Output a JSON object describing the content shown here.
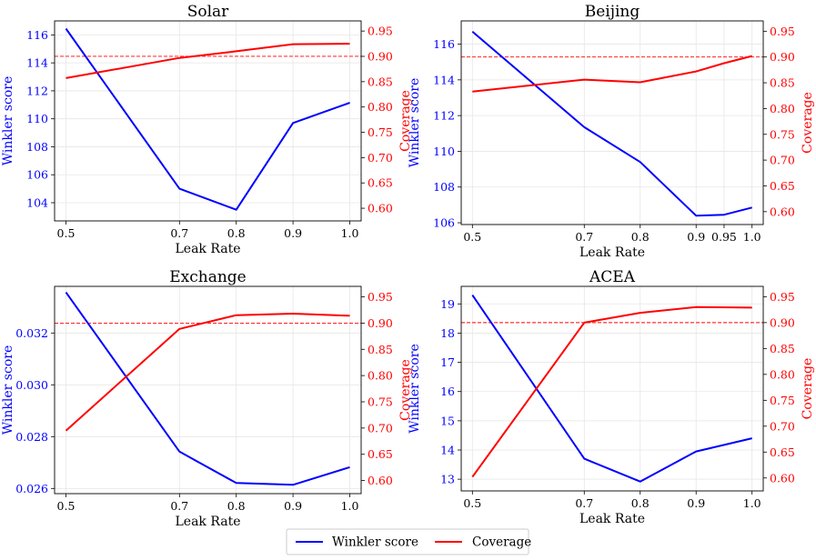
{
  "colors": {
    "winkler": "#0000ff",
    "coverage": "#ff0000",
    "grid": "#e6e6e6",
    "target": "#ff0000"
  },
  "legend": {
    "winkler_label": "Winkler score",
    "coverage_label": "Coverage"
  },
  "chart_data": [
    {
      "type": "line",
      "title": "Solar",
      "xlabel": "Leak Rate",
      "ylabel_left": "Winkler score",
      "ylabel_right": "Coverage",
      "grid": true,
      "target_coverage": 0.9,
      "x": [
        0.5,
        0.7,
        0.8,
        0.9,
        1.0
      ],
      "xticks": [
        "0.5",
        "0.7",
        "0.8",
        "0.9",
        "1.0"
      ],
      "xlim": [
        0.48,
        1.02
      ],
      "ylim_left": [
        102.7,
        117.0
      ],
      "yticks_left": [
        "104",
        "106",
        "108",
        "110",
        "112",
        "114",
        "116"
      ],
      "ylim_right": [
        0.575,
        0.97
      ],
      "yticks_right": [
        "0.60",
        "0.65",
        "0.70",
        "0.75",
        "0.80",
        "0.85",
        "0.90",
        "0.95"
      ],
      "series": [
        {
          "name": "Winkler score",
          "axis": "left",
          "values": [
            116.45,
            105.0,
            103.5,
            109.7,
            111.15
          ]
        },
        {
          "name": "Coverage",
          "axis": "right",
          "values": [
            0.857,
            0.897,
            0.91,
            0.924,
            0.925
          ]
        }
      ]
    },
    {
      "type": "line",
      "title": "Beijing",
      "xlabel": "Leak Rate",
      "ylabel_left": "Winkler score",
      "ylabel_right": "Coverage",
      "grid": true,
      "target_coverage": 0.9,
      "x": [
        0.5,
        0.7,
        0.8,
        0.9,
        0.95,
        1.0
      ],
      "xticks": [
        "0.5",
        "0.7",
        "0.8",
        "0.9",
        "0.95",
        "1.0"
      ],
      "xlim": [
        0.48,
        1.02
      ],
      "ylim_left": [
        105.9,
        117.3
      ],
      "yticks_left": [
        "106",
        "108",
        "110",
        "112",
        "114",
        "116"
      ],
      "ylim_right": [
        0.575,
        0.97
      ],
      "yticks_right": [
        "0.60",
        "0.65",
        "0.70",
        "0.75",
        "0.80",
        "0.85",
        "0.90",
        "0.95"
      ],
      "series": [
        {
          "name": "Winkler score",
          "axis": "left",
          "values": [
            116.7,
            111.35,
            109.4,
            106.4,
            106.45,
            106.85
          ]
        },
        {
          "name": "Coverage",
          "axis": "right",
          "values": [
            0.833,
            0.856,
            0.851,
            0.872,
            0.888,
            0.902
          ]
        }
      ]
    },
    {
      "type": "line",
      "title": "Exchange",
      "xlabel": "Leak Rate",
      "ylabel_left": "Winkler score",
      "ylabel_right": "Coverage",
      "grid": true,
      "target_coverage": 0.9,
      "x": [
        0.5,
        0.7,
        0.8,
        0.9,
        1.0
      ],
      "xticks": [
        "0.5",
        "0.7",
        "0.8",
        "0.9",
        "1.0"
      ],
      "xlim": [
        0.48,
        1.02
      ],
      "ylim_left": [
        0.0258,
        0.0338
      ],
      "yticks_left": [
        "0.026",
        "0.028",
        "0.030",
        "0.032"
      ],
      "ylim_right": [
        0.575,
        0.97
      ],
      "yticks_right": [
        "0.60",
        "0.65",
        "0.70",
        "0.75",
        "0.80",
        "0.85",
        "0.90",
        "0.95"
      ],
      "series": [
        {
          "name": "Winkler score",
          "axis": "left",
          "values": [
            0.03357,
            0.02742,
            0.02621,
            0.02614,
            0.02682
          ]
        },
        {
          "name": "Coverage",
          "axis": "right",
          "values": [
            0.695,
            0.889,
            0.915,
            0.918,
            0.914
          ]
        }
      ]
    },
    {
      "type": "line",
      "title": "ACEA",
      "xlabel": "Leak Rate",
      "ylabel_left": "Winkler score",
      "ylabel_right": "Coverage",
      "grid": true,
      "target_coverage": 0.9,
      "x": [
        0.5,
        0.7,
        0.8,
        0.9,
        1.0
      ],
      "xticks": [
        "0.5",
        "0.7",
        "0.8",
        "0.9",
        "1.0"
      ],
      "xlim": [
        0.48,
        1.02
      ],
      "ylim_left": [
        12.6,
        19.6
      ],
      "yticks_left": [
        "13",
        "14",
        "15",
        "16",
        "17",
        "18",
        "19"
      ],
      "ylim_right": [
        0.575,
        0.97
      ],
      "yticks_right": [
        "0.60",
        "0.65",
        "0.70",
        "0.75",
        "0.80",
        "0.85",
        "0.90",
        "0.95"
      ],
      "series": [
        {
          "name": "Winkler score",
          "axis": "left",
          "values": [
            19.3,
            13.7,
            12.92,
            13.95,
            14.4
          ]
        },
        {
          "name": "Coverage",
          "axis": "right",
          "values": [
            0.602,
            0.9,
            0.919,
            0.93,
            0.929
          ]
        }
      ]
    }
  ]
}
